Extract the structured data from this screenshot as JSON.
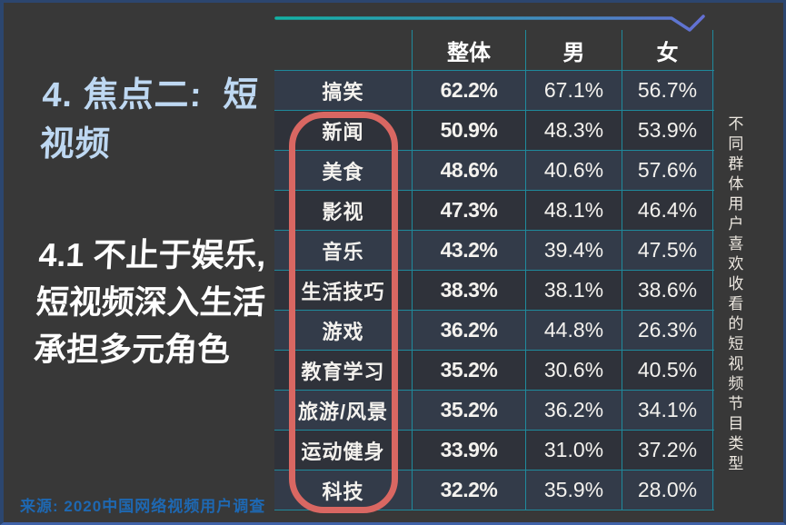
{
  "slide": {
    "section_title_lines": [
      "4. 焦点二:  短",
      "视频"
    ],
    "subtitle_lines": [
      "4.1 不止于娱乐,",
      "短视频深入生活",
      "承担多元角色"
    ],
    "source": "来源:  2020中国网络视频用户调查",
    "side_caption": "不同群体用户喜欢收看的短视频节目类型"
  },
  "table": {
    "columns": [
      "整体",
      "男",
      "女"
    ],
    "rows": [
      {
        "category": "搞笑",
        "overall": "62.2%",
        "male": "67.1%",
        "female": "56.7%"
      },
      {
        "category": "新闻",
        "overall": "50.9%",
        "male": "48.3%",
        "female": "53.9%"
      },
      {
        "category": "美食",
        "overall": "48.6%",
        "male": "40.6%",
        "female": "57.6%"
      },
      {
        "category": "影视",
        "overall": "47.3%",
        "male": "48.1%",
        "female": "46.4%"
      },
      {
        "category": "音乐",
        "overall": "43.2%",
        "male": "39.4%",
        "female": "47.5%"
      },
      {
        "category": "生活技巧",
        "overall": "38.3%",
        "male": "38.1%",
        "female": "38.6%"
      },
      {
        "category": "游戏",
        "overall": "36.2%",
        "male": "44.8%",
        "female": "26.3%"
      },
      {
        "category": "教育学习",
        "overall": "35.2%",
        "male": "30.6%",
        "female": "40.5%"
      },
      {
        "category": "旅游/风景",
        "overall": "35.2%",
        "male": "36.2%",
        "female": "34.1%"
      },
      {
        "category": "运动健身",
        "overall": "33.9%",
        "male": "31.0%",
        "female": "37.2%"
      },
      {
        "category": "科技",
        "overall": "32.2%",
        "male": "35.9%",
        "female": "28.0%"
      }
    ]
  },
  "colors": {
    "background": "#383838",
    "grid_teal": "#1f8a9c",
    "cell_navy": "#333b49",
    "cell_dark": "#2f323a",
    "highlight_red": "#d96762",
    "title_blue": "#bed8f2",
    "source_blue": "#1e68b2",
    "accent_gradient_start": "#12b3a6",
    "accent_gradient_end": "#6470d4",
    "frame_blue": "#2c466f",
    "frame_bottom_blue": "#3f62a8"
  },
  "chart_data": {
    "type": "table",
    "title": "不同群体用户喜欢收看的短视频节目类型",
    "categories": [
      "搞笑",
      "新闻",
      "美食",
      "影视",
      "音乐",
      "生活技巧",
      "游戏",
      "教育学习",
      "旅游/风景",
      "运动健身",
      "科技"
    ],
    "series": [
      {
        "name": "整体",
        "values": [
          62.2,
          50.9,
          48.6,
          47.3,
          43.2,
          38.3,
          36.2,
          35.2,
          35.2,
          33.9,
          32.2
        ]
      },
      {
        "name": "男",
        "values": [
          67.1,
          48.3,
          40.6,
          48.1,
          39.4,
          38.1,
          44.8,
          30.6,
          36.2,
          31.0,
          35.9
        ]
      },
      {
        "name": "女",
        "values": [
          56.7,
          53.9,
          57.6,
          46.4,
          47.5,
          38.6,
          26.3,
          40.5,
          34.1,
          37.2,
          28.0
        ]
      }
    ],
    "unit": "%",
    "highlighted_categories": [
      "新闻",
      "美食",
      "影视",
      "音乐",
      "生活技巧",
      "游戏",
      "教育学习",
      "旅游/风景",
      "运动健身",
      "科技"
    ],
    "source": "2020中国网络视频用户调查"
  }
}
